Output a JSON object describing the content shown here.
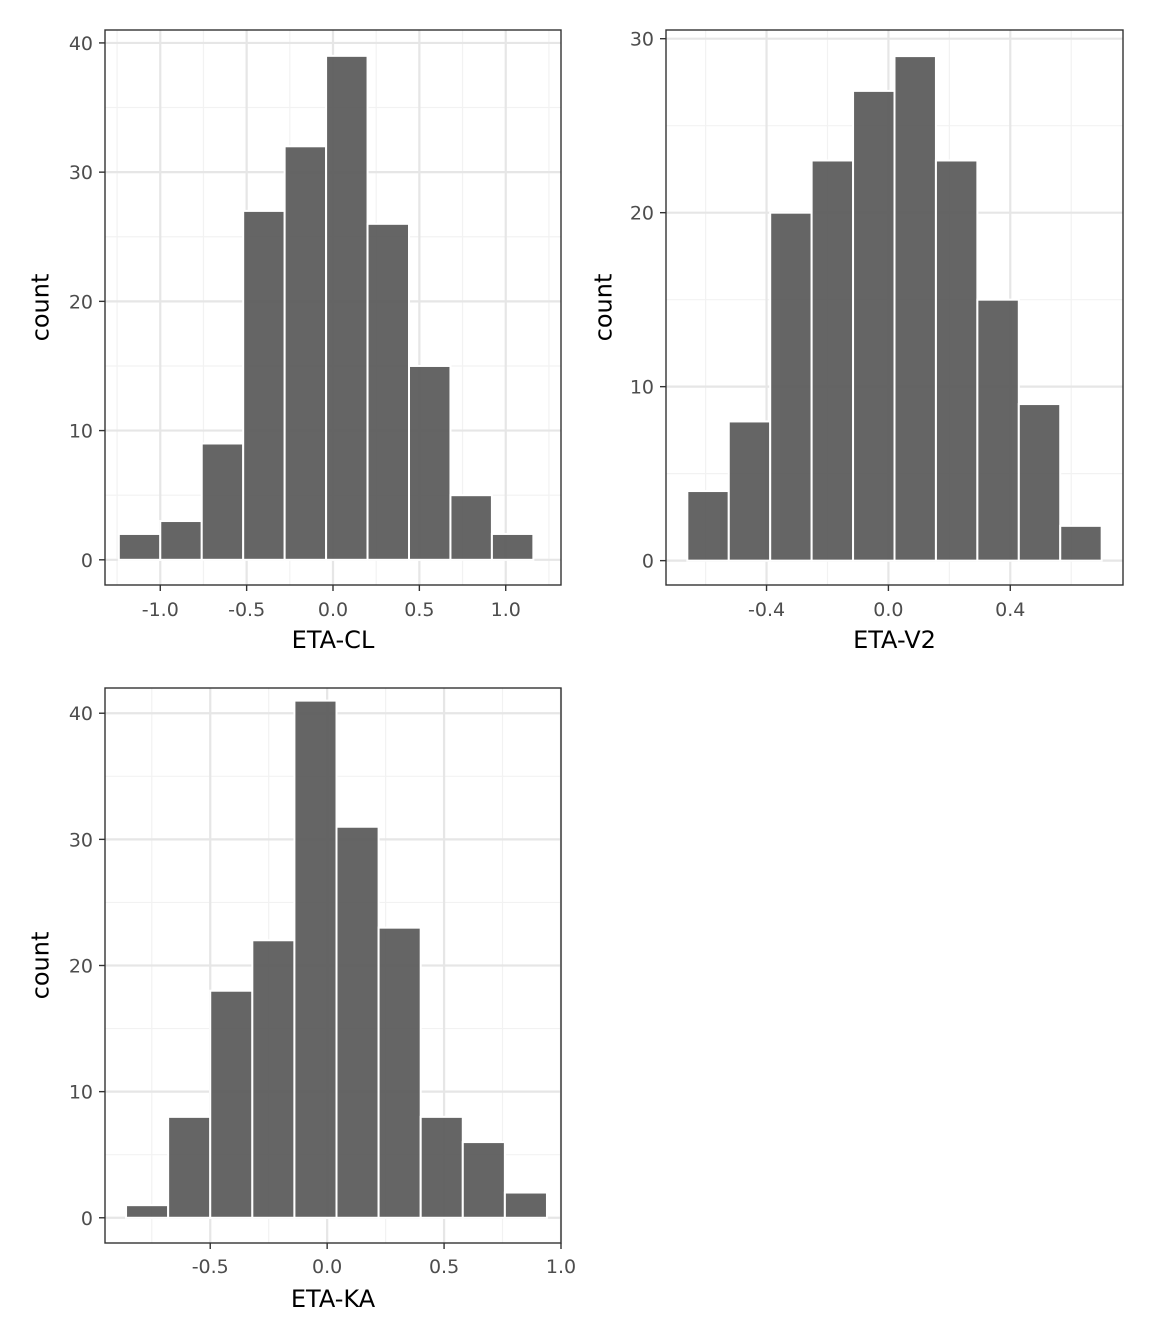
{
  "colors": {
    "bar_fill": "#595959",
    "bar_outline": "#ffffff",
    "panel_border": "#333333",
    "grid_major": "#e6e6e6",
    "grid_minor": "#f2f2f2",
    "tick_label": "#4d4d4d",
    "background": "#ffffff"
  },
  "chart_data": [
    {
      "type": "bar",
      "xlabel": "ETA-CL",
      "ylabel": "count",
      "grid": true,
      "xlim": [
        -1.32,
        1.32
      ],
      "ylim": [
        -1.95,
        41
      ],
      "x_ticks": [
        -1.0,
        -0.5,
        0.0,
        0.5,
        1.0
      ],
      "x_tick_labels": [
        "-1.0",
        "-0.5",
        "0.0",
        "0.5",
        "1.0"
      ],
      "y_ticks": [
        0,
        10,
        20,
        30,
        40
      ],
      "y_tick_labels": [
        "0",
        "10",
        "20",
        "30",
        "40"
      ],
      "bin_width": 0.24,
      "bin_centers": [
        -1.12,
        -0.88,
        -0.64,
        -0.4,
        -0.16,
        0.08,
        0.32,
        0.56,
        0.8,
        1.04
      ],
      "values": [
        2,
        3,
        9,
        27,
        32,
        39,
        26,
        15,
        5,
        2
      ]
    },
    {
      "type": "bar",
      "xlabel": "ETA-V2",
      "ylabel": "count",
      "grid": true,
      "xlim": [
        -0.73,
        0.77
      ],
      "ylim": [
        -1.4,
        30.5
      ],
      "x_ticks": [
        -0.4,
        0.0,
        0.4
      ],
      "x_tick_labels": [
        "-0.4",
        "0.0",
        "0.4"
      ],
      "y_ticks": [
        0,
        10,
        20,
        30
      ],
      "y_tick_labels": [
        "0",
        "10",
        "20",
        "30"
      ],
      "bin_width": 0.136,
      "bin_centers": [
        -0.592,
        -0.456,
        -0.32,
        -0.184,
        -0.048,
        0.088,
        0.224,
        0.36,
        0.496,
        0.632
      ],
      "values": [
        4,
        8,
        20,
        23,
        27,
        29,
        23,
        15,
        9,
        2
      ]
    },
    {
      "type": "bar",
      "xlabel": "ETA-KA",
      "ylabel": "count",
      "grid": true,
      "xlim": [
        -0.95,
        1.0
      ],
      "ylim": [
        -2,
        42
      ],
      "x_ticks": [
        -0.5,
        0.0,
        0.5,
        1.0
      ],
      "x_tick_labels": [
        "-0.5",
        "0.0",
        "0.5",
        "1.0"
      ],
      "y_ticks": [
        0,
        10,
        20,
        30,
        40
      ],
      "y_tick_labels": [
        "0",
        "10",
        "20",
        "30",
        "40"
      ],
      "bin_width": 0.18,
      "bin_centers": [
        -0.77,
        -0.59,
        -0.41,
        -0.23,
        -0.05,
        0.13,
        0.31,
        0.49,
        0.67,
        0.85
      ],
      "values": [
        1,
        8,
        18,
        22,
        41,
        31,
        23,
        8,
        6,
        2
      ]
    }
  ]
}
